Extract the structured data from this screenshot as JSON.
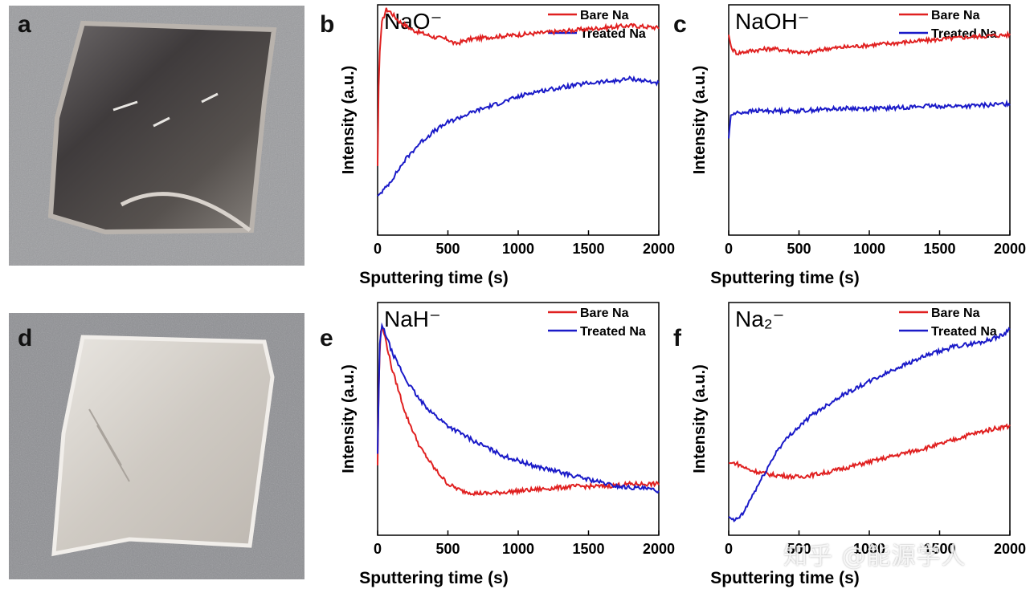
{
  "figure": {
    "panels": {
      "a": "a",
      "b": "b",
      "c": "c",
      "d": "d",
      "e": "e",
      "f": "f"
    },
    "watermark": "知乎 @能源学人"
  },
  "colors": {
    "bare": "#e02020",
    "treated": "#1a1ac8"
  },
  "chart_data": [
    {
      "panel": "b",
      "type": "line",
      "title": "NaO⁻",
      "xlabel": "Sputtering time (s)",
      "ylabel": "Intensity (a.u.)",
      "xlim": [
        0,
        2000
      ],
      "ylim": [
        0,
        1
      ],
      "xticks": [
        "0",
        "500",
        "1000",
        "1500",
        "2000"
      ],
      "legend_position": "top-right",
      "series": [
        {
          "name": "Bare Na",
          "x": [
            0,
            10,
            30,
            60,
            90,
            150,
            250,
            400,
            500,
            550,
            650,
            800,
            1000,
            1200,
            1400,
            1600,
            1800,
            2000
          ],
          "y": [
            0.3,
            0.75,
            0.92,
            0.98,
            0.97,
            0.93,
            0.89,
            0.86,
            0.85,
            0.83,
            0.85,
            0.86,
            0.87,
            0.88,
            0.89,
            0.9,
            0.91,
            0.9
          ]
        },
        {
          "name": "Treated Na",
          "x": [
            0,
            50,
            100,
            200,
            300,
            400,
            500,
            700,
            900,
            1100,
            1300,
            1500,
            1700,
            1800,
            1900,
            2000
          ],
          "y": [
            0.17,
            0.2,
            0.24,
            0.33,
            0.4,
            0.45,
            0.49,
            0.54,
            0.58,
            0.62,
            0.64,
            0.66,
            0.67,
            0.68,
            0.67,
            0.66
          ]
        }
      ]
    },
    {
      "panel": "c",
      "type": "line",
      "title": "NaOH⁻",
      "xlabel": "Sputtering time (s)",
      "ylabel": "Intensity (a.u.)",
      "xlim": [
        0,
        2000
      ],
      "ylim": [
        0,
        1
      ],
      "xticks": [
        "0",
        "500",
        "1000",
        "1500",
        "2000"
      ],
      "legend_position": "top-right",
      "series": [
        {
          "name": "Bare Na",
          "x": [
            0,
            20,
            60,
            150,
            300,
            450,
            550,
            700,
            900,
            1100,
            1300,
            1500,
            1700,
            2000
          ],
          "y": [
            0.87,
            0.81,
            0.79,
            0.8,
            0.81,
            0.8,
            0.79,
            0.81,
            0.82,
            0.83,
            0.84,
            0.85,
            0.86,
            0.87
          ]
        },
        {
          "name": "Treated Na",
          "x": [
            0,
            15,
            50,
            200,
            500,
            800,
            1100,
            1400,
            1700,
            2000
          ],
          "y": [
            0.42,
            0.52,
            0.53,
            0.54,
            0.54,
            0.55,
            0.55,
            0.56,
            0.56,
            0.57
          ]
        }
      ]
    },
    {
      "panel": "e",
      "type": "line",
      "title": "NaH⁻",
      "xlabel": "Sputtering time (s)",
      "ylabel": "Intensity (a.u.)",
      "xlim": [
        0,
        2000
      ],
      "ylim": [
        0,
        1
      ],
      "xticks": [
        "0",
        "500",
        "1000",
        "1500",
        "2000"
      ],
      "legend_position": "top-right",
      "series": [
        {
          "name": "Bare Na",
          "x": [
            0,
            10,
            25,
            50,
            100,
            200,
            300,
            400,
            500,
            600,
            700,
            800,
            1000,
            1200,
            1400,
            1600,
            1800,
            2000
          ],
          "y": [
            0.3,
            0.72,
            0.9,
            0.86,
            0.72,
            0.52,
            0.38,
            0.29,
            0.22,
            0.19,
            0.18,
            0.18,
            0.19,
            0.2,
            0.21,
            0.21,
            0.22,
            0.22
          ]
        },
        {
          "name": "Treated Na",
          "x": [
            0,
            15,
            30,
            60,
            100,
            200,
            300,
            400,
            500,
            700,
            900,
            1100,
            1300,
            1500,
            1700,
            1900,
            2000
          ],
          "y": [
            0.35,
            0.82,
            0.9,
            0.86,
            0.79,
            0.67,
            0.58,
            0.52,
            0.47,
            0.4,
            0.34,
            0.3,
            0.27,
            0.24,
            0.21,
            0.2,
            0.19
          ]
        }
      ]
    },
    {
      "panel": "f",
      "type": "line",
      "title": "Na₂⁻",
      "xlabel": "Sputtering time (s)",
      "ylabel": "Intensity (a.u.)",
      "xlim": [
        0,
        2000
      ],
      "ylim": [
        0,
        1
      ],
      "xticks": [
        "0",
        "500",
        "1000",
        "1500",
        "2000"
      ],
      "legend_position": "top-right",
      "series": [
        {
          "name": "Bare Na",
          "x": [
            0,
            50,
            150,
            300,
            500,
            700,
            900,
            1100,
            1300,
            1500,
            1700,
            1900,
            2000
          ],
          "y": [
            0.31,
            0.31,
            0.28,
            0.26,
            0.25,
            0.27,
            0.3,
            0.33,
            0.36,
            0.39,
            0.43,
            0.46,
            0.47
          ]
        },
        {
          "name": "Treated Na",
          "x": [
            0,
            40,
            100,
            150,
            250,
            350,
            450,
            600,
            800,
            1000,
            1200,
            1400,
            1600,
            1800,
            1950,
            2000
          ],
          "y": [
            0.08,
            0.06,
            0.09,
            0.15,
            0.26,
            0.37,
            0.44,
            0.52,
            0.6,
            0.66,
            0.72,
            0.77,
            0.81,
            0.83,
            0.86,
            0.89
          ]
        }
      ]
    }
  ]
}
